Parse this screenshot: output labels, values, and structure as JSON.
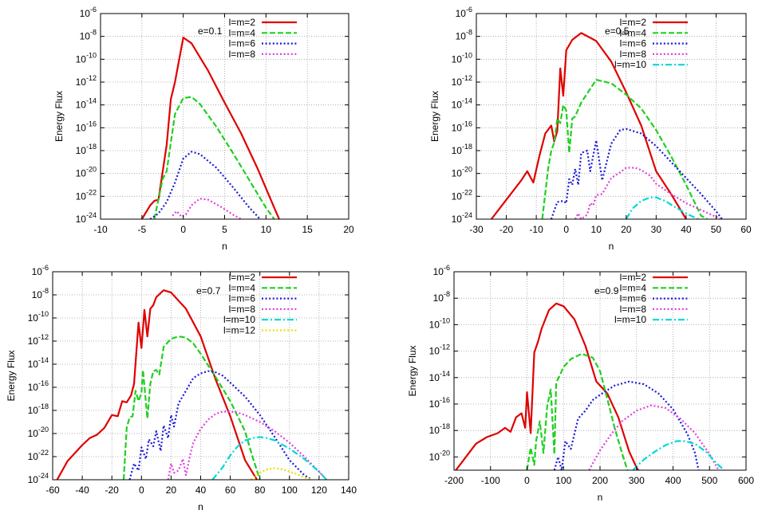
{
  "figure": {
    "colors": {
      "l2": "#e00000",
      "l4": "#20d020",
      "l6": "#1a1ad8",
      "l8": "#e040e0",
      "l10": "#00d8d8",
      "l12": "#e8e000",
      "frame": "#000000",
      "grid": "#a0a0a0"
    }
  },
  "chart_data": [
    {
      "type": "line",
      "log_y": true,
      "annotation": "e=0.1",
      "xlabel": "n",
      "ylabel": "Energy Flux",
      "xlim": [
        -10,
        20
      ],
      "ylim": [
        -24,
        -6
      ],
      "grid": true,
      "legend": "top-right",
      "x_ticks": [
        -10,
        -5,
        0,
        5,
        10,
        15,
        20
      ],
      "x_tick_labels": [
        "-10",
        "-5",
        "0",
        "5",
        "10",
        "15",
        "20"
      ],
      "y_ticks": [
        -24,
        -22,
        -20,
        -18,
        -16,
        -14,
        -12,
        -10,
        -8,
        -6
      ],
      "y_tick_labels": [
        "10-24",
        "10-22",
        "10-20",
        "10-18",
        "10-16",
        "10-14",
        "10-12",
        "10-10",
        "10-8",
        "10-6"
      ],
      "series": [
        {
          "name": "l=m=2",
          "color": "l2",
          "dash": "solid",
          "x": [
            -5,
            -4,
            -3.5,
            -3,
            -2,
            -1.5,
            -1,
            0,
            1,
            3,
            5,
            7,
            9,
            11,
            11.6
          ],
          "y": [
            -24,
            -22.8,
            -22.4,
            -22.3,
            -17.5,
            -13.5,
            -12,
            -8.1,
            -8.6,
            -11,
            -13.8,
            -16.5,
            -19.6,
            -23,
            -24
          ]
        },
        {
          "name": "l=m=4",
          "color": "l4",
          "dash": "dashed",
          "x": [
            -3.5,
            -2.5,
            -2,
            -1,
            0,
            1,
            2,
            4,
            6,
            8,
            10,
            11
          ],
          "y": [
            -24,
            -20.5,
            -19.8,
            -14.8,
            -13.4,
            -13.3,
            -13.9,
            -15.9,
            -18.2,
            -20.6,
            -23,
            -24
          ]
        },
        {
          "name": "l=m=6",
          "color": "l6",
          "dash": "dotted",
          "x": [
            -4,
            -3,
            -2,
            -1,
            0,
            1,
            2,
            4,
            6,
            8,
            9.3
          ],
          "y": [
            -24,
            -23.5,
            -22.5,
            -20.8,
            -18.7,
            -18.1,
            -18.3,
            -19.5,
            -21.2,
            -23,
            -24
          ]
        },
        {
          "name": "l=m=8",
          "color": "l8",
          "dash": "dotted",
          "x": [
            -1.3,
            -0.8,
            -0.2,
            0.3,
            1,
            2,
            3,
            4.5,
            6,
            7
          ],
          "y": [
            -23.7,
            -23.3,
            -23.8,
            -23.6,
            -22.8,
            -22.2,
            -22.3,
            -22.9,
            -23.6,
            -24
          ]
        }
      ]
    },
    {
      "type": "line",
      "log_y": true,
      "annotation": "e=0.5",
      "xlabel": "n",
      "ylabel": "Energy Flux",
      "xlim": [
        -30,
        60
      ],
      "ylim": [
        -24,
        -6
      ],
      "grid": true,
      "legend": "top-right",
      "x_ticks": [
        -30,
        -20,
        -10,
        0,
        10,
        20,
        30,
        40,
        50,
        60
      ],
      "x_tick_labels": [
        "-30",
        "-20",
        "-10",
        "0",
        "10",
        "20",
        "30",
        "40",
        "50",
        "60"
      ],
      "y_ticks": [
        -24,
        -22,
        -20,
        -18,
        -16,
        -14,
        -12,
        -10,
        -8,
        -6
      ],
      "y_tick_labels": [
        "10-24",
        "10-22",
        "10-20",
        "10-18",
        "10-16",
        "10-14",
        "10-12",
        "10-10",
        "10-8",
        "10-6"
      ],
      "series": [
        {
          "name": "l=m=2",
          "color": "l2",
          "dash": "solid",
          "x": [
            -25,
            -20,
            -15,
            -13,
            -11,
            -9,
            -7,
            -5,
            -4,
            -3,
            -2,
            -1,
            0,
            2,
            5,
            10,
            15,
            20,
            25,
            30,
            35,
            40
          ],
          "y": [
            -24,
            -22.3,
            -20.6,
            -19.8,
            -20.8,
            -18.5,
            -16.5,
            -15.8,
            -17.2,
            -16.3,
            -10.8,
            -13.2,
            -9.2,
            -8.3,
            -7.7,
            -8.4,
            -10.2,
            -12.9,
            -15.8,
            -19.8,
            -21.8,
            -24
          ]
        },
        {
          "name": "l=m=4",
          "color": "l4",
          "dash": "dashed",
          "x": [
            -8,
            -6,
            -5,
            -4,
            -3,
            -2,
            -1,
            0,
            1,
            2,
            3,
            5,
            10,
            15,
            20,
            25,
            30,
            35,
            40,
            45,
            47
          ],
          "y": [
            -24,
            -19.5,
            -18,
            -17.3,
            -15.2,
            -15.6,
            -14,
            -14.5,
            -18.2,
            -15.2,
            -15,
            -13.8,
            -11.8,
            -12.1,
            -13.1,
            -14.3,
            -16.2,
            -18.5,
            -21,
            -23.7,
            -24
          ]
        },
        {
          "name": "l=m=6",
          "color": "l6",
          "dash": "dotted",
          "x": [
            -5,
            -3,
            -1,
            0,
            1,
            2,
            3,
            4,
            5,
            7,
            8,
            10,
            12,
            15,
            18,
            20,
            25,
            30,
            35,
            40,
            45,
            50,
            52
          ],
          "y": [
            -24,
            -22.5,
            -22.4,
            -22.6,
            -20.5,
            -21,
            -19.6,
            -21,
            -18.2,
            -18,
            -19.8,
            -17.1,
            -20.6,
            -17.4,
            -16.2,
            -16.1,
            -16.5,
            -17.6,
            -19,
            -20.4,
            -21.8,
            -23.3,
            -24
          ]
        },
        {
          "name": "l=m=8",
          "color": "l8",
          "dash": "dotted",
          "x": [
            3,
            4,
            5,
            7,
            8,
            9,
            10,
            12,
            15,
            18,
            20,
            23,
            25,
            28,
            30,
            35,
            40,
            45,
            50,
            52
          ],
          "y": [
            -24,
            -23.5,
            -24,
            -23.6,
            -22.6,
            -22.8,
            -21.9,
            -21.8,
            -20.4,
            -19.9,
            -19.5,
            -19.5,
            -19.7,
            -20.2,
            -20.9,
            -21.8,
            -22.6,
            -23.2,
            -23.8,
            -24
          ]
        },
        {
          "name": "l=m=10",
          "color": "l10",
          "dash": "dashdot",
          "x": [
            20,
            22,
            25,
            28,
            30,
            33,
            36,
            40,
            44
          ],
          "y": [
            -24,
            -23.1,
            -22.4,
            -22.1,
            -22.1,
            -22.4,
            -22.9,
            -23.5,
            -24
          ]
        }
      ]
    },
    {
      "type": "line",
      "log_y": true,
      "annotation": "e=0.7",
      "xlabel": "n",
      "ylabel": "Energy Flux",
      "xlim": [
        -60,
        140
      ],
      "ylim": [
        -24,
        -6
      ],
      "grid": true,
      "legend": "top-right",
      "x_ticks": [
        -60,
        -40,
        -20,
        0,
        20,
        40,
        60,
        80,
        100,
        120,
        140
      ],
      "x_tick_labels": [
        "-60",
        "-40",
        "-20",
        "0",
        "20",
        "40",
        "60",
        "80",
        "100",
        "120",
        "140"
      ],
      "y_ticks": [
        -24,
        -22,
        -20,
        -18,
        -16,
        -14,
        -12,
        -10,
        -8,
        -6
      ],
      "y_tick_labels": [
        "10-24",
        "10-22",
        "10-20",
        "10-18",
        "10-16",
        "10-14",
        "10-12",
        "10-10",
        "10-8",
        "10-6"
      ],
      "series": [
        {
          "name": "l=m=2",
          "color": "l2",
          "dash": "solid",
          "x": [
            -57,
            -50,
            -40,
            -35,
            -30,
            -25,
            -20,
            -16,
            -13,
            -10,
            -7,
            -5,
            -2,
            0,
            2,
            4,
            6,
            8,
            10,
            15,
            20,
            30,
            40,
            50,
            60,
            70,
            78
          ],
          "y": [
            -24,
            -22.4,
            -21,
            -20.4,
            -20.1,
            -19.5,
            -18.4,
            -18.5,
            -17.2,
            -17.3,
            -16.7,
            -15.7,
            -10.4,
            -12.6,
            -9.3,
            -11.6,
            -9.2,
            -8.9,
            -8.2,
            -7.6,
            -7.8,
            -9.2,
            -11.6,
            -15.3,
            -18.5,
            -22.3,
            -24
          ]
        },
        {
          "name": "l=m=4",
          "color": "l4",
          "dash": "dashed",
          "x": [
            -12,
            -10,
            -8,
            -6,
            -4,
            -2,
            0,
            1,
            4,
            6,
            8,
            10,
            12,
            15,
            20,
            25,
            30,
            35,
            40,
            50,
            60,
            70,
            75,
            80
          ],
          "y": [
            -24,
            -19.5,
            -18.6,
            -18.5,
            -16.3,
            -17.2,
            -16.5,
            -14.5,
            -18.7,
            -15.7,
            -14.6,
            -14.5,
            -14.9,
            -12.5,
            -11.8,
            -11.6,
            -11.7,
            -12.2,
            -13.1,
            -15.1,
            -17.2,
            -19.8,
            -22,
            -24
          ]
        },
        {
          "name": "l=m=6",
          "color": "l6",
          "dash": "dotted",
          "x": [
            -8,
            -5,
            -2,
            0,
            3,
            5,
            8,
            10,
            13,
            15,
            18,
            20,
            22,
            25,
            30,
            35,
            40,
            45,
            50,
            55,
            60,
            70,
            80,
            90,
            100,
            110,
            115
          ],
          "y": [
            -24,
            -22.6,
            -23.2,
            -21.2,
            -22.2,
            -20.5,
            -21.1,
            -19.8,
            -21.5,
            -19.3,
            -20.4,
            -18.4,
            -19.4,
            -17.4,
            -16.3,
            -15.2,
            -14.8,
            -14.6,
            -14.7,
            -15,
            -15.6,
            -16.8,
            -18.4,
            -20.3,
            -22.3,
            -23.6,
            -24
          ]
        },
        {
          "name": "l=m=8",
          "color": "l8",
          "dash": "dotted",
          "x": [
            18,
            20,
            22,
            25,
            28,
            30,
            33,
            35,
            40,
            45,
            50,
            55,
            60,
            65,
            70,
            80,
            90,
            100,
            110,
            120,
            125
          ],
          "y": [
            -24,
            -22.6,
            -23.4,
            -23.2,
            -22.2,
            -23.6,
            -21.8,
            -20.8,
            -19.6,
            -18.8,
            -18.3,
            -18.1,
            -18.1,
            -18.2,
            -18.4,
            -19,
            -19.8,
            -20.8,
            -22,
            -23.3,
            -24
          ]
        },
        {
          "name": "l=m=10",
          "color": "l10",
          "dash": "dashdot",
          "x": [
            48,
            55,
            60,
            65,
            70,
            75,
            80,
            85,
            90,
            100,
            110,
            120,
            125
          ],
          "y": [
            -24,
            -22.9,
            -21.9,
            -21.1,
            -20.6,
            -20.4,
            -20.3,
            -20.4,
            -20.6,
            -21.3,
            -22.2,
            -23.3,
            -24
          ]
        },
        {
          "name": "l=m=12",
          "color": "l12",
          "dash": "dotted",
          "x": [
            74,
            80,
            85,
            90,
            95,
            100,
            105,
            110,
            115
          ],
          "y": [
            -24,
            -23.4,
            -23.1,
            -23,
            -23.1,
            -23.3,
            -23.5,
            -23.8,
            -24
          ]
        }
      ]
    },
    {
      "type": "line",
      "log_y": true,
      "annotation": "e=0.9",
      "xlabel": "n",
      "ylabel": "Energy Flux",
      "xlim": [
        -200,
        600
      ],
      "ylim": [
        -21,
        -6
      ],
      "grid": true,
      "legend": "top-right",
      "x_ticks": [
        -200,
        -100,
        0,
        100,
        200,
        300,
        400,
        500,
        600
      ],
      "x_tick_labels": [
        "-200",
        "-100",
        "0",
        "100",
        "200",
        "300",
        "400",
        "500",
        "600"
      ],
      "y_ticks": [
        -20,
        -18,
        -16,
        -14,
        -12,
        -10,
        -8,
        -6
      ],
      "y_tick_labels": [
        "10-20",
        "10-18",
        "10-16",
        "10-14",
        "10-12",
        "10-10",
        "10-8",
        "10-6"
      ],
      "series": [
        {
          "name": "l=m=2",
          "color": "l2",
          "dash": "solid",
          "x": [
            -195,
            -170,
            -140,
            -110,
            -80,
            -60,
            -45,
            -30,
            -15,
            -5,
            0,
            10,
            20,
            30,
            40,
            60,
            80,
            100,
            130,
            160,
            190,
            220,
            250,
            280,
            300,
            305
          ],
          "y": [
            -21,
            -20.1,
            -19,
            -18.5,
            -18.2,
            -17.8,
            -18.1,
            -17,
            -16.7,
            -17.8,
            -15.1,
            -18.2,
            -12.1,
            -11.3,
            -10.3,
            -8.9,
            -8.4,
            -8.6,
            -9.6,
            -11.6,
            -14.3,
            -15.2,
            -17,
            -19.6,
            -20.8,
            -21
          ]
        },
        {
          "name": "l=m=4",
          "color": "l4",
          "dash": "dashed",
          "x": [
            0,
            10,
            20,
            25,
            35,
            45,
            55,
            65,
            75,
            80,
            100,
            120,
            150,
            180,
            200,
            220,
            240,
            260,
            275
          ],
          "y": [
            -21,
            -19.3,
            -20.6,
            -18.8,
            -17.3,
            -19.7,
            -16.2,
            -14.9,
            -19.8,
            -14.4,
            -13.2,
            -12.6,
            -12.2,
            -12.5,
            -13.5,
            -15.6,
            -17.8,
            -19.7,
            -21
          ]
        },
        {
          "name": "l=m=6",
          "color": "l6",
          "dash": "dotted",
          "x": [
            75,
            85,
            95,
            105,
            120,
            140,
            160,
            180,
            200,
            240,
            280,
            320,
            360,
            400,
            440,
            460,
            470
          ],
          "y": [
            -21,
            -20,
            -21,
            -18.8,
            -19.4,
            -17.1,
            -16.5,
            -15.7,
            -15.3,
            -14.6,
            -14.3,
            -14.5,
            -15.2,
            -16.4,
            -18.3,
            -19.7,
            -21
          ]
        },
        {
          "name": "l=m=8",
          "color": "l8",
          "dash": "dotted",
          "x": [
            170,
            200,
            230,
            260,
            300,
            340,
            380,
            420,
            460,
            500,
            525
          ],
          "y": [
            -21,
            -19.5,
            -18.3,
            -17.3,
            -16.5,
            -16.1,
            -16.3,
            -17.1,
            -18.2,
            -19.8,
            -21
          ]
        },
        {
          "name": "l=m=10",
          "color": "l10",
          "dash": "dashdot",
          "x": [
            290,
            320,
            350,
            380,
            410,
            430,
            460,
            490,
            520,
            540
          ],
          "y": [
            -21,
            -20.2,
            -19.6,
            -19.1,
            -18.8,
            -18.8,
            -19,
            -19.6,
            -20.5,
            -21
          ]
        }
      ]
    }
  ]
}
